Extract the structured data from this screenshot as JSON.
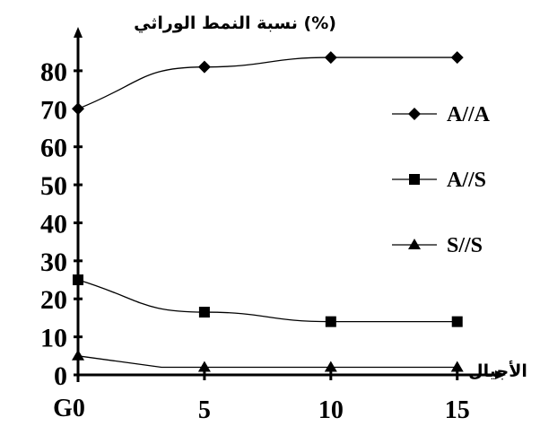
{
  "chart_data": {
    "type": "line",
    "title": "",
    "ylabel": "نسبة النمط الوراثي (%)",
    "xlabel": "الأجيال",
    "x_origin_label": "G0",
    "x": [
      0,
      5,
      10,
      15
    ],
    "x_tick_labels": [
      "5",
      "10",
      "15"
    ],
    "y_ticks": [
      0,
      10,
      20,
      30,
      40,
      50,
      60,
      70,
      80
    ],
    "xlim": [
      0,
      16.5
    ],
    "ylim": [
      0,
      88
    ],
    "grid": false,
    "legend_position": "right",
    "series": [
      {
        "name": "A//A",
        "marker": "diamond",
        "values": [
          70,
          81,
          83.5,
          83.5
        ]
      },
      {
        "name": "A//S",
        "marker": "square",
        "values": [
          25,
          16.5,
          14,
          14
        ]
      },
      {
        "name": "S//S",
        "marker": "triangle",
        "values": [
          5,
          2,
          2,
          2
        ]
      }
    ]
  }
}
